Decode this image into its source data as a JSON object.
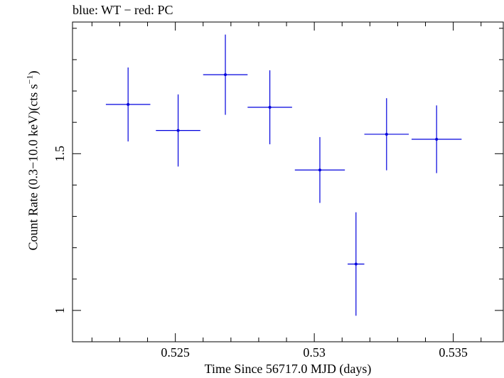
{
  "chart_data": {
    "type": "scatter",
    "title": "blue: WT − red: PC",
    "xlabel": "Time Since 56717.0 MJD (days)",
    "ylabel": {
      "prefix": "Count Rate (0.3−10.0 keV)(cts s",
      "exponent": "−1",
      "suffix": ")"
    },
    "xlim": [
      0.5213,
      0.5368
    ],
    "ylim": [
      0.9,
      1.92
    ],
    "x_ticks": [
      {
        "value": 0.525,
        "label": "0.525"
      },
      {
        "value": 0.53,
        "label": "0.53"
      },
      {
        "value": 0.535,
        "label": "0.535"
      }
    ],
    "y_ticks": [
      {
        "value": 1.0,
        "label": "1"
      },
      {
        "value": 1.5,
        "label": "1.5"
      }
    ],
    "grid": false,
    "series": [
      {
        "color": "#0000dd",
        "points": [
          {
            "x": 0.5233,
            "y": 1.657,
            "xerr": 0.0008,
            "yerr": 0.118
          },
          {
            "x": 0.5251,
            "y": 1.574,
            "xerr": 0.0008,
            "yerr": 0.115
          },
          {
            "x": 0.5268,
            "y": 1.752,
            "xerr": 0.0008,
            "yerr": 0.128
          },
          {
            "x": 0.5284,
            "y": 1.648,
            "xerr": 0.0008,
            "yerr": 0.118
          },
          {
            "x": 0.5302,
            "y": 1.448,
            "xerr": 0.0009,
            "yerr": 0.105
          },
          {
            "x": 0.5315,
            "y": 1.148,
            "xerr": 0.0003,
            "yerr": 0.165
          },
          {
            "x": 0.5326,
            "y": 1.562,
            "xerr": 0.0008,
            "yerr": 0.115
          },
          {
            "x": 0.5344,
            "y": 1.546,
            "xerr": 0.0009,
            "yerr": 0.108
          }
        ]
      }
    ]
  }
}
